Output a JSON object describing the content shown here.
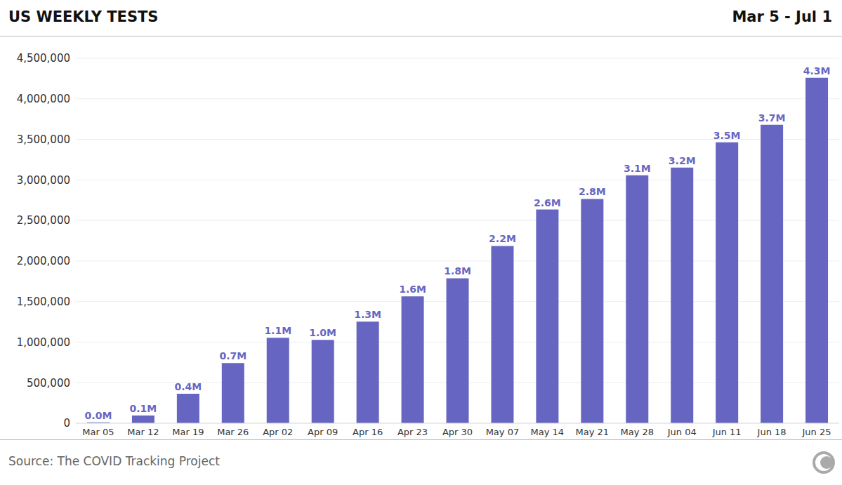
{
  "chart_data": {
    "type": "bar",
    "title": "US WEEKLY TESTS",
    "subtitle": "Mar 5 - Jul 1",
    "annotations": [
      "Source: The COVID Tracking Project"
    ],
    "categories": [
      "Mar 05",
      "Mar 12",
      "Mar 19",
      "Mar 26",
      "Apr 02",
      "Apr 09",
      "Apr 16",
      "Apr 23",
      "Apr 30",
      "May 07",
      "May 14",
      "May 21",
      "May 28",
      "Jun 04",
      "Jun 11",
      "Jun 18",
      "Jun 25"
    ],
    "values": [
      10000,
      95000,
      363000,
      743000,
      1054000,
      1028000,
      1253000,
      1564000,
      1788000,
      2186000,
      2635000,
      2765000,
      3058000,
      3153000,
      3464000,
      3680000,
      4259000
    ],
    "value_labels": [
      "0.0M",
      "0.1M",
      "0.4M",
      "0.7M",
      "1.1M",
      "1.0M",
      "1.3M",
      "1.6M",
      "1.8M",
      "2.2M",
      "2.6M",
      "2.8M",
      "3.1M",
      "3.2M",
      "3.5M",
      "3.7M",
      "4.3M"
    ],
    "color": "#6666c2",
    "ylim": [
      0,
      4500000
    ],
    "yticks": [
      0,
      {
        "value": 500000,
        "label": "500,000"
      },
      {
        "value": 1000000,
        "label": "1,000,000"
      },
      {
        "value": 1500000,
        "label": "1,500,000"
      },
      {
        "value": 2000000,
        "label": "2,000,000"
      },
      {
        "value": 2500000,
        "label": "2,500,000"
      },
      {
        "value": 3000000,
        "label": "3,000,000"
      },
      {
        "value": 3500000,
        "label": "3,500,000"
      },
      {
        "value": 4000000,
        "label": "4,000,000"
      },
      {
        "value": 4500000,
        "label": "4,500,000"
      }
    ],
    "grid": true,
    "data_labels": true
  }
}
